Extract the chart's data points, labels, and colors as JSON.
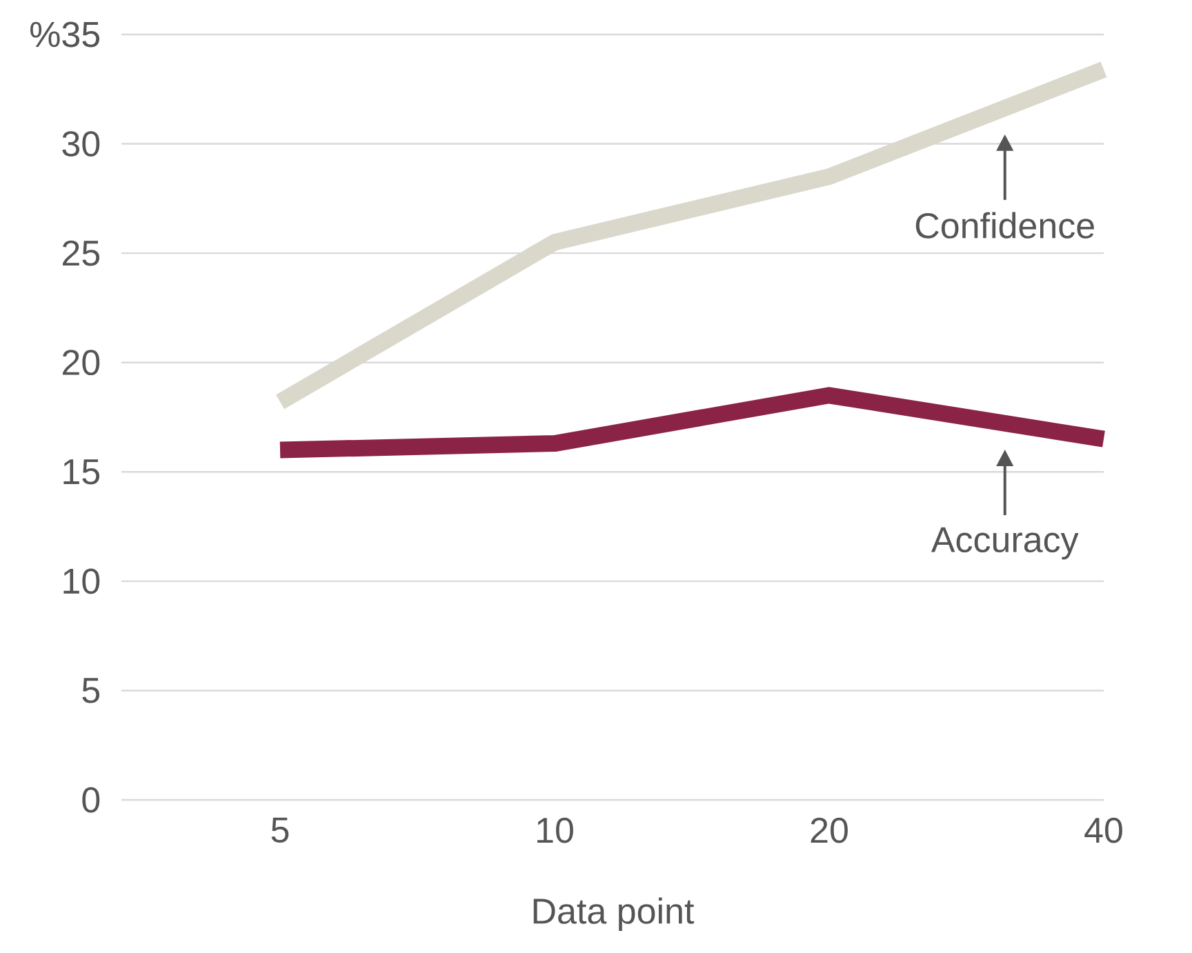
{
  "chart_data": {
    "type": "line",
    "xlabel": "Data point",
    "categories": [
      "5",
      "10",
      "20",
      "40"
    ],
    "series": [
      {
        "name": "Confidence",
        "color": "#d9d8cb",
        "values": [
          18.2,
          25.5,
          28.5,
          33.4
        ]
      },
      {
        "name": "Accuracy",
        "color": "#8b2346",
        "values": [
          16.0,
          16.3,
          18.5,
          16.5
        ]
      }
    ],
    "ylim": [
      0,
      35
    ],
    "yticks": [
      0,
      5,
      10,
      15,
      20,
      25,
      30,
      {
        "value": 35,
        "label": "%35"
      }
    ],
    "grid": "y",
    "marker": "none",
    "line_style": "solid"
  }
}
